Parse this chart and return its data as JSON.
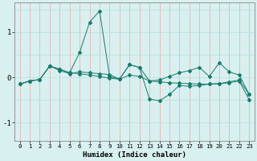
{
  "xlabel": "Humidex (Indice chaleur)",
  "x": [
    0,
    1,
    2,
    3,
    4,
    5,
    6,
    7,
    8,
    9,
    10,
    11,
    12,
    13,
    14,
    15,
    16,
    17,
    18,
    19,
    20,
    21,
    22,
    23
  ],
  "line1": [
    -0.15,
    -0.08,
    -0.05,
    0.25,
    0.18,
    0.1,
    0.55,
    1.22,
    1.47,
    0.02,
    -0.04,
    0.28,
    0.22,
    -0.08,
    -0.06,
    0.02,
    0.1,
    0.15,
    0.22,
    0.02,
    0.32,
    0.12,
    0.05,
    -0.38
  ],
  "line2": [
    -0.15,
    -0.08,
    -0.05,
    0.25,
    0.18,
    0.1,
    0.08,
    0.05,
    0.02,
    -0.02,
    -0.04,
    0.05,
    0.02,
    -0.08,
    -0.1,
    -0.12,
    -0.13,
    -0.14,
    -0.15,
    -0.15,
    -0.14,
    -0.1,
    -0.06,
    -0.38
  ],
  "line3": [
    -0.15,
    -0.08,
    -0.05,
    0.25,
    0.15,
    0.08,
    0.12,
    0.1,
    0.08,
    0.06,
    -0.04,
    0.28,
    0.22,
    -0.48,
    -0.52,
    -0.38,
    -0.18,
    -0.2,
    -0.18,
    -0.15,
    -0.14,
    -0.12,
    -0.08,
    -0.5
  ],
  "line_color": "#1a7a6e",
  "bg_color": "#d8f0ef",
  "grid_color_v": "#e8a8a8",
  "grid_color_h": "#b8dede",
  "ylim": [
    -1.4,
    1.65
  ],
  "yticks": [
    -1,
    0,
    1
  ],
  "xlim": [
    -0.5,
    23.5
  ]
}
